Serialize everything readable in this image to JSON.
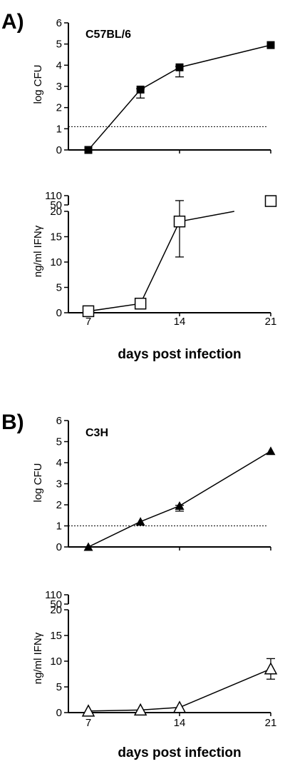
{
  "panels": [
    {
      "letter": "A)",
      "strain": "C57BL/6",
      "cfu": {
        "ylabel": "log CFU",
        "ylim": [
          0,
          6
        ],
        "yticks": [
          "0",
          "1",
          "2",
          "3",
          "4",
          "5",
          "6"
        ],
        "detection_limit": 1.1,
        "marker": "filled-square",
        "points": [
          {
            "x": 7,
            "y": 0.0,
            "err": 0
          },
          {
            "x": 11,
            "y": 2.85,
            "err": 0.4
          },
          {
            "x": 14,
            "y": 3.9,
            "err": 0.45
          },
          {
            "x": 21,
            "y": 4.95,
            "err": 0
          }
        ]
      },
      "ifn": {
        "ylabel": "ng/ml IFNγ",
        "lower_ylim": [
          0,
          20
        ],
        "lower_yticks": [
          "0",
          "5",
          "10",
          "15",
          "20"
        ],
        "upper_yticks": [
          "50",
          "110"
        ],
        "marker": "open-square",
        "points": [
          {
            "x": 7,
            "y": 0.3,
            "err_low": 0,
            "err_high": 0
          },
          {
            "x": 11,
            "y": 1.8,
            "err_low": 0,
            "err_high": 0
          },
          {
            "x": 14,
            "y": 18,
            "err_low": 7,
            "err_high": 60
          },
          {
            "x": 21,
            "y": 75,
            "err_low": 15,
            "err_high": 20
          }
        ]
      },
      "xaxis": {
        "label": "days post infection",
        "ticks": [
          "7",
          "14",
          "21"
        ],
        "xlim": [
          7,
          21
        ]
      }
    },
    {
      "letter": "B)",
      "strain": "C3H",
      "cfu": {
        "ylabel": "log CFU",
        "ylim": [
          0,
          6
        ],
        "yticks": [
          "0",
          "1",
          "2",
          "3",
          "4",
          "5",
          "6"
        ],
        "detection_limit": 1.0,
        "marker": "filled-triangle",
        "points": [
          {
            "x": 7,
            "y": 0.0,
            "err": 0
          },
          {
            "x": 11,
            "y": 1.2,
            "err": 0
          },
          {
            "x": 14,
            "y": 1.95,
            "err": 0.25
          },
          {
            "x": 21,
            "y": 4.55,
            "err": 0
          }
        ]
      },
      "ifn": {
        "ylabel": "ng/ml IFNγ",
        "lower_ylim": [
          0,
          20
        ],
        "lower_yticks": [
          "0",
          "5",
          "10",
          "15",
          "20"
        ],
        "upper_yticks": [
          "50",
          "110"
        ],
        "marker": "open-triangle",
        "points": [
          {
            "x": 7,
            "y": 0.3,
            "err_low": 0,
            "err_high": 0
          },
          {
            "x": 11,
            "y": 0.5,
            "err_low": 0,
            "err_high": 0
          },
          {
            "x": 14,
            "y": 1.0,
            "err_low": 0,
            "err_high": 0
          },
          {
            "x": 21,
            "y": 8.5,
            "err_low": 2,
            "err_high": 2
          }
        ]
      },
      "xaxis": {
        "label": "days post infection",
        "ticks": [
          "7",
          "14",
          "21"
        ],
        "xlim": [
          7,
          21
        ]
      }
    }
  ],
  "chart_data": [
    {
      "type": "line",
      "panel": "A",
      "title": "C57BL/6",
      "xlabel": "days post infection",
      "ylabel": "log CFU",
      "ylim": [
        0,
        6
      ],
      "x": [
        7,
        11,
        14,
        21
      ],
      "series": [
        {
          "values": [
            0.0,
            2.85,
            3.9,
            4.95
          ]
        }
      ],
      "reference_line": 1.1
    },
    {
      "type": "line",
      "panel": "A",
      "xlabel": "days post infection",
      "ylabel": "ng/ml IFNγ",
      "ylim": [
        0,
        110
      ],
      "axis_break": [
        20,
        50
      ],
      "x": [
        7,
        11,
        14,
        21
      ],
      "series": [
        {
          "values": [
            0.3,
            1.8,
            18,
            75
          ]
        }
      ]
    },
    {
      "type": "line",
      "panel": "B",
      "title": "C3H",
      "xlabel": "days post infection",
      "ylabel": "log CFU",
      "ylim": [
        0,
        6
      ],
      "x": [
        7,
        11,
        14,
        21
      ],
      "series": [
        {
          "values": [
            0.0,
            1.2,
            1.95,
            4.55
          ]
        }
      ],
      "reference_line": 1.0
    },
    {
      "type": "line",
      "panel": "B",
      "xlabel": "days post infection",
      "ylabel": "ng/ml IFNγ",
      "ylim": [
        0,
        110
      ],
      "axis_break": [
        20,
        50
      ],
      "x": [
        7,
        11,
        14,
        21
      ],
      "series": [
        {
          "values": [
            0.3,
            0.5,
            1.0,
            8.5
          ]
        }
      ]
    }
  ]
}
